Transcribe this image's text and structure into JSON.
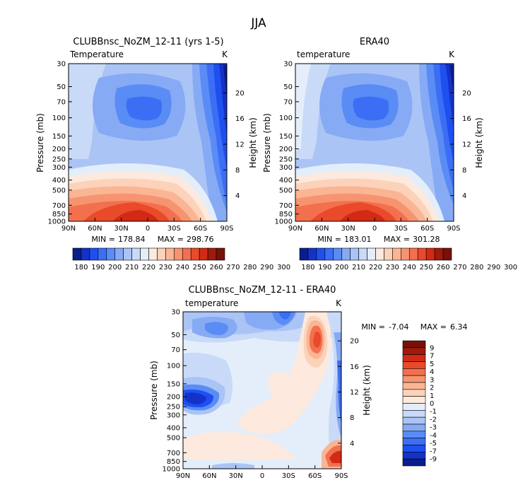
{
  "title": "JJA",
  "colors": [
    "#0a1e8c",
    "#1432c8",
    "#1e50f0",
    "#3c6ef5",
    "#5a8cf5",
    "#87aaf5",
    "#aac4f5",
    "#c8daf8",
    "#e4eefa",
    "#fde9dd",
    "#fcd2b9",
    "#fab594",
    "#f79470",
    "#f3704f",
    "#e84a2a",
    "#d22a14",
    "#a01a0a",
    "#78100a"
  ],
  "chart_data": [
    {
      "type": "heatmap",
      "id": "model",
      "title": "CLUBBnsc_NoZM_12-11 (yrs 1-5)",
      "left_label": "Temperature",
      "units": "K",
      "ylabel": "Pressure (mb)",
      "ylabel_right": "Height (km)",
      "x_ticks": [
        "90N",
        "60N",
        "30N",
        "0",
        "30S",
        "60S",
        "90S"
      ],
      "y_ticks": [
        "30",
        "50",
        "70",
        "100",
        "150",
        "200",
        "250",
        "300",
        "400",
        "500",
        "700",
        "850",
        "1000"
      ],
      "height_ticks": [
        "20",
        "16",
        "12",
        "8",
        "4"
      ],
      "min_label": "MIN =",
      "min_value": "178.84",
      "max_label": "MAX =",
      "max_value": "298.76",
      "colorbar_labels": [
        "180",
        "190",
        "200",
        "210",
        "220",
        "230",
        "240",
        "250",
        "260",
        "270",
        "280",
        "290",
        "300"
      ],
      "y_range_mb": [
        1000,
        30
      ],
      "x_range_deg": [
        90,
        -90
      ]
    },
    {
      "type": "heatmap",
      "id": "obs",
      "title": "ERA40",
      "left_label": "temperature",
      "units": "K",
      "ylabel": "Pressure (mb)",
      "ylabel_right": "Height (km)",
      "x_ticks": [
        "90N",
        "60N",
        "30N",
        "0",
        "30S",
        "60S",
        "90S"
      ],
      "y_ticks": [
        "30",
        "50",
        "70",
        "100",
        "150",
        "200",
        "250",
        "300",
        "400",
        "500",
        "700",
        "850",
        "1000"
      ],
      "height_ticks": [
        "20",
        "16",
        "12",
        "8",
        "4"
      ],
      "min_label": "MIN =",
      "min_value": "183.01",
      "max_label": "MAX =",
      "max_value": "301.28",
      "colorbar_labels": [
        "180",
        "190",
        "200",
        "210",
        "220",
        "230",
        "240",
        "250",
        "260",
        "270",
        "280",
        "290",
        "300"
      ],
      "y_range_mb": [
        1000,
        30
      ],
      "x_range_deg": [
        90,
        -90
      ]
    },
    {
      "type": "heatmap",
      "id": "diff",
      "title": "CLUBBnsc_NoZM_12-11 - ERA40",
      "left_label": "temperature",
      "units": "K",
      "ylabel": "Pressure (mb)",
      "ylabel_right": "Height (km)",
      "x_ticks": [
        "90N",
        "60N",
        "30N",
        "0",
        "30S",
        "60S",
        "90S"
      ],
      "y_ticks": [
        "30",
        "50",
        "70",
        "100",
        "150",
        "200",
        "250",
        "300",
        "400",
        "500",
        "700",
        "850",
        "1000"
      ],
      "height_ticks": [
        "20",
        "16",
        "12",
        "8",
        "4"
      ],
      "min_label": "MIN =",
      "min_value": "-7.04",
      "max_label": "MAX =",
      "max_value": "6.34",
      "colorbar_labels": [
        "9",
        "7",
        "5",
        "4",
        "3",
        "2",
        "1",
        "0",
        "-1",
        "-2",
        "-3",
        "-4",
        "-5",
        "-7",
        "-9"
      ],
      "y_range_mb": [
        1000,
        30
      ],
      "x_range_deg": [
        90,
        -90
      ]
    }
  ]
}
